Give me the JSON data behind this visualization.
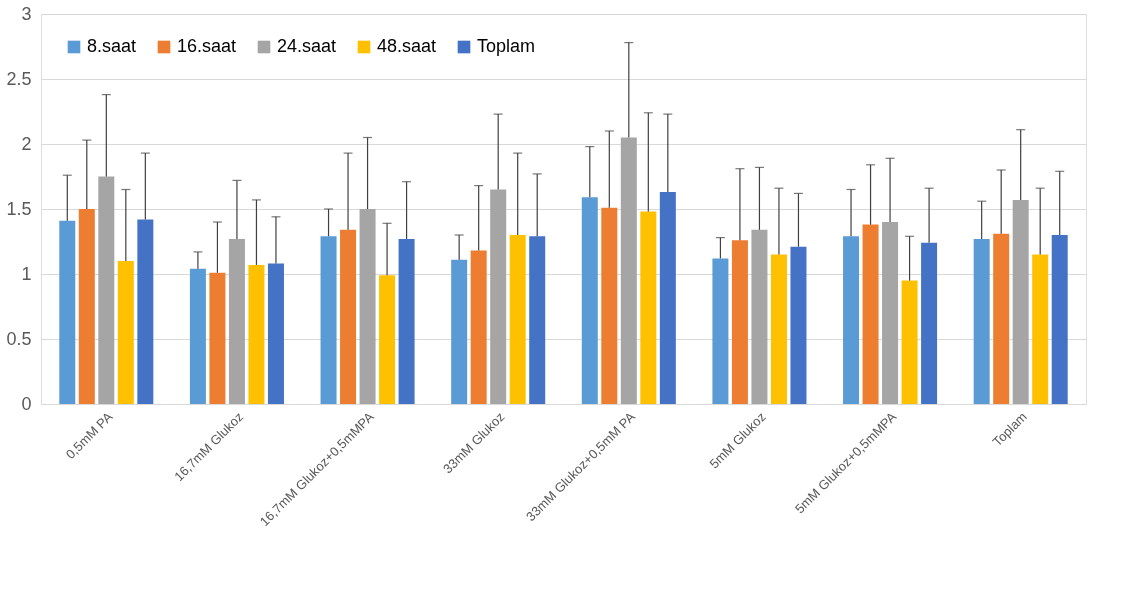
{
  "chart_data": {
    "type": "bar",
    "categories": [
      "0,5mM PA",
      "16,7mM Glukoz",
      "16,7mM Glukoz+0,5mMPA",
      "33mM Glukoz",
      "33mM Glukoz+0,5mM PA",
      "5mM Glukoz",
      "5mM Glukoz+0,5mMPA",
      "Toplam"
    ],
    "series": [
      {
        "name": "8.saat",
        "color": "#5b9bd5",
        "values": [
          1.41,
          1.04,
          1.29,
          1.11,
          1.59,
          1.12,
          1.29,
          1.27
        ],
        "errors": [
          [
            1.41,
            1.76
          ],
          [
            1.04,
            1.17
          ],
          [
            1.29,
            1.5
          ],
          [
            1.11,
            1.3
          ],
          [
            1.59,
            1.98
          ],
          [
            1.12,
            1.28
          ],
          [
            1.29,
            1.65
          ],
          [
            1.27,
            1.56
          ]
        ]
      },
      {
        "name": "16.saat",
        "color": "#ed7d31",
        "values": [
          1.5,
          1.01,
          1.34,
          1.18,
          1.51,
          1.26,
          1.38,
          1.31
        ],
        "errors": [
          [
            1.5,
            2.03
          ],
          [
            1.01,
            1.4
          ],
          [
            1.34,
            1.93
          ],
          [
            1.18,
            1.68
          ],
          [
            1.51,
            2.1
          ],
          [
            1.26,
            1.81
          ],
          [
            1.38,
            1.84
          ],
          [
            1.31,
            1.8
          ]
        ]
      },
      {
        "name": "24.saat",
        "color": "#a5a5a5",
        "values": [
          1.75,
          1.27,
          1.5,
          1.65,
          2.05,
          1.34,
          1.4,
          1.57
        ],
        "errors": [
          [
            1.75,
            2.38
          ],
          [
            1.27,
            1.72
          ],
          [
            1.5,
            2.05
          ],
          [
            1.65,
            2.23
          ],
          [
            2.05,
            2.78
          ],
          [
            1.34,
            1.82
          ],
          [
            1.4,
            1.89
          ],
          [
            1.57,
            2.11
          ]
        ]
      },
      {
        "name": "48.saat",
        "color": "#ffc000",
        "values": [
          1.1,
          1.07,
          0.99,
          1.3,
          1.48,
          1.15,
          0.95,
          1.15
        ],
        "errors": [
          [
            1.1,
            1.65
          ],
          [
            1.07,
            1.57
          ],
          [
            0.99,
            1.39
          ],
          [
            1.3,
            1.93
          ],
          [
            1.48,
            2.24
          ],
          [
            1.15,
            1.66
          ],
          [
            0.95,
            1.29
          ],
          [
            1.15,
            1.66
          ]
        ]
      },
      {
        "name": "Toplam",
        "color": "#4472c4",
        "values": [
          1.42,
          1.08,
          1.27,
          1.29,
          1.63,
          1.21,
          1.24,
          1.3
        ],
        "errors": [
          [
            1.42,
            1.93
          ],
          [
            1.08,
            1.44
          ],
          [
            1.27,
            1.71
          ],
          [
            1.29,
            1.77
          ],
          [
            1.63,
            2.23
          ],
          [
            1.21,
            1.62
          ],
          [
            1.24,
            1.66
          ],
          [
            1.3,
            1.79
          ]
        ]
      }
    ],
    "ylim": [
      0,
      3
    ],
    "yticks": [
      0,
      0.5,
      1,
      1.5,
      2,
      2.5,
      3
    ],
    "grid": "y",
    "legend": "top left"
  }
}
